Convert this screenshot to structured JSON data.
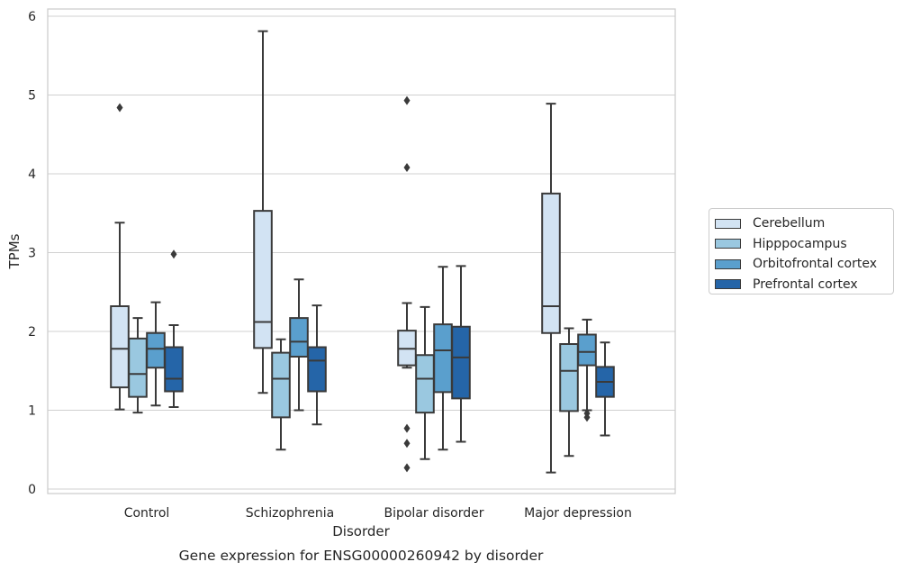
{
  "chart_data": {
    "type": "box",
    "title": "Gene expression for ENSG00000260942 by disorder",
    "xlabel": "Disorder",
    "ylabel": "TPMs",
    "ylim": [
      -0.05,
      6.1
    ],
    "yticks": [
      0,
      1,
      2,
      3,
      4,
      5,
      6
    ],
    "grid": true,
    "legend_position": "right, outside plot",
    "categories": [
      "Control",
      "Schizophrenia",
      "Bipolar disorder",
      "Major depression"
    ],
    "series": [
      {
        "name": "Cerebellum",
        "color": "#d2e3f3",
        "boxes": [
          {
            "whislo": 1.01,
            "q1": 1.29,
            "med": 1.78,
            "q3": 2.32,
            "whishi": 3.38,
            "fliers": [
              4.84
            ]
          },
          {
            "whislo": 1.22,
            "q1": 1.79,
            "med": 2.12,
            "q3": 3.53,
            "whishi": 5.81,
            "fliers": []
          },
          {
            "whislo": 1.54,
            "q1": 1.57,
            "med": 1.78,
            "q3": 2.01,
            "whishi": 2.36,
            "fliers": [
              4.93,
              4.08,
              0.77,
              0.58,
              0.27
            ]
          },
          {
            "whislo": 0.21,
            "q1": 1.98,
            "med": 2.32,
            "q3": 3.75,
            "whishi": 4.89,
            "fliers": []
          }
        ]
      },
      {
        "name": "Hipppocampus",
        "color": "#9ac8e0",
        "boxes": [
          {
            "whislo": 0.97,
            "q1": 1.17,
            "med": 1.46,
            "q3": 1.91,
            "whishi": 2.17,
            "fliers": []
          },
          {
            "whislo": 0.5,
            "q1": 0.91,
            "med": 1.4,
            "q3": 1.73,
            "whishi": 1.9,
            "fliers": []
          },
          {
            "whislo": 0.38,
            "q1": 0.97,
            "med": 1.4,
            "q3": 1.7,
            "whishi": 2.31,
            "fliers": []
          },
          {
            "whislo": 0.42,
            "q1": 0.99,
            "med": 1.5,
            "q3": 1.84,
            "whishi": 2.04,
            "fliers": []
          }
        ]
      },
      {
        "name": "Orbitofrontal cortex",
        "color": "#5a9fcd",
        "boxes": [
          {
            "whislo": 1.06,
            "q1": 1.54,
            "med": 1.78,
            "q3": 1.98,
            "whishi": 2.37,
            "fliers": []
          },
          {
            "whislo": 1.0,
            "q1": 1.68,
            "med": 1.87,
            "q3": 2.17,
            "whishi": 2.66,
            "fliers": []
          },
          {
            "whislo": 0.5,
            "q1": 1.23,
            "med": 1.76,
            "q3": 2.09,
            "whishi": 2.82,
            "fliers": []
          },
          {
            "whislo": 1.0,
            "q1": 1.57,
            "med": 1.74,
            "q3": 1.96,
            "whishi": 2.15,
            "fliers": [
              0.96,
              0.91
            ]
          }
        ]
      },
      {
        "name": "Prefrontal cortex",
        "color": "#2565a8",
        "boxes": [
          {
            "whislo": 1.04,
            "q1": 1.24,
            "med": 1.4,
            "q3": 1.8,
            "whishi": 2.08,
            "fliers": [
              2.98
            ]
          },
          {
            "whislo": 0.82,
            "q1": 1.24,
            "med": 1.63,
            "q3": 1.8,
            "whishi": 2.33,
            "fliers": []
          },
          {
            "whislo": 0.6,
            "q1": 1.15,
            "med": 1.67,
            "q3": 2.06,
            "whishi": 2.83,
            "fliers": []
          },
          {
            "whislo": 0.68,
            "q1": 1.17,
            "med": 1.36,
            "q3": 1.55,
            "whishi": 1.86,
            "fliers": []
          }
        ]
      }
    ]
  }
}
